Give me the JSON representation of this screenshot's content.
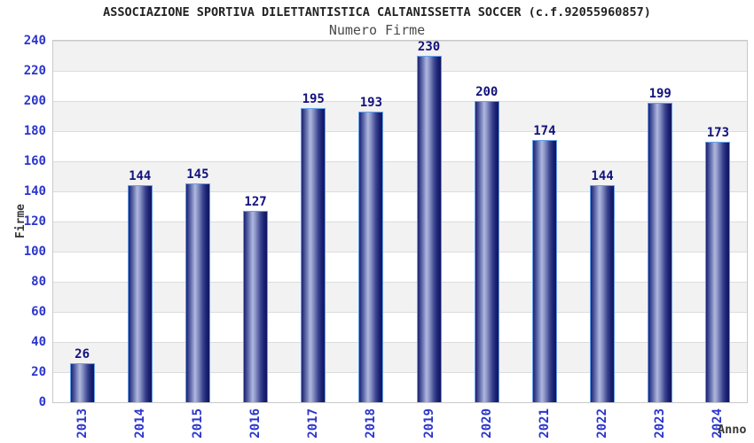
{
  "chart_data": {
    "type": "bar",
    "title": "ASSOCIAZIONE SPORTIVA DILETTANTISTICA CALTANISSETTA SOCCER (c.f.92055960857)",
    "subtitle": "Numero Firme",
    "xlabel": "Anno",
    "ylabel": "Firme",
    "categories": [
      "2013",
      "2014",
      "2015",
      "2016",
      "2017",
      "2018",
      "2019",
      "2020",
      "2021",
      "2022",
      "2023",
      "2024"
    ],
    "values": [
      26,
      144,
      145,
      127,
      195,
      193,
      230,
      200,
      174,
      144,
      199,
      173
    ],
    "ylim": [
      0,
      240
    ],
    "ytick_step": 20,
    "grid": true,
    "legend_position": "none",
    "colors": {
      "tick_label": "#2c35cc",
      "value_label": "#12127d",
      "bar_dark": "#1b2173",
      "bar_highlight": "#b0b8e0",
      "bar_border": "#63a0ea",
      "band_gray": "#f2f2f2",
      "gridline": "#dcdcdc",
      "plot_border": "#c9c9c9",
      "title": "#222222",
      "subtitle": "#4a4a4a",
      "axis_title": "#3a3a3a"
    }
  }
}
